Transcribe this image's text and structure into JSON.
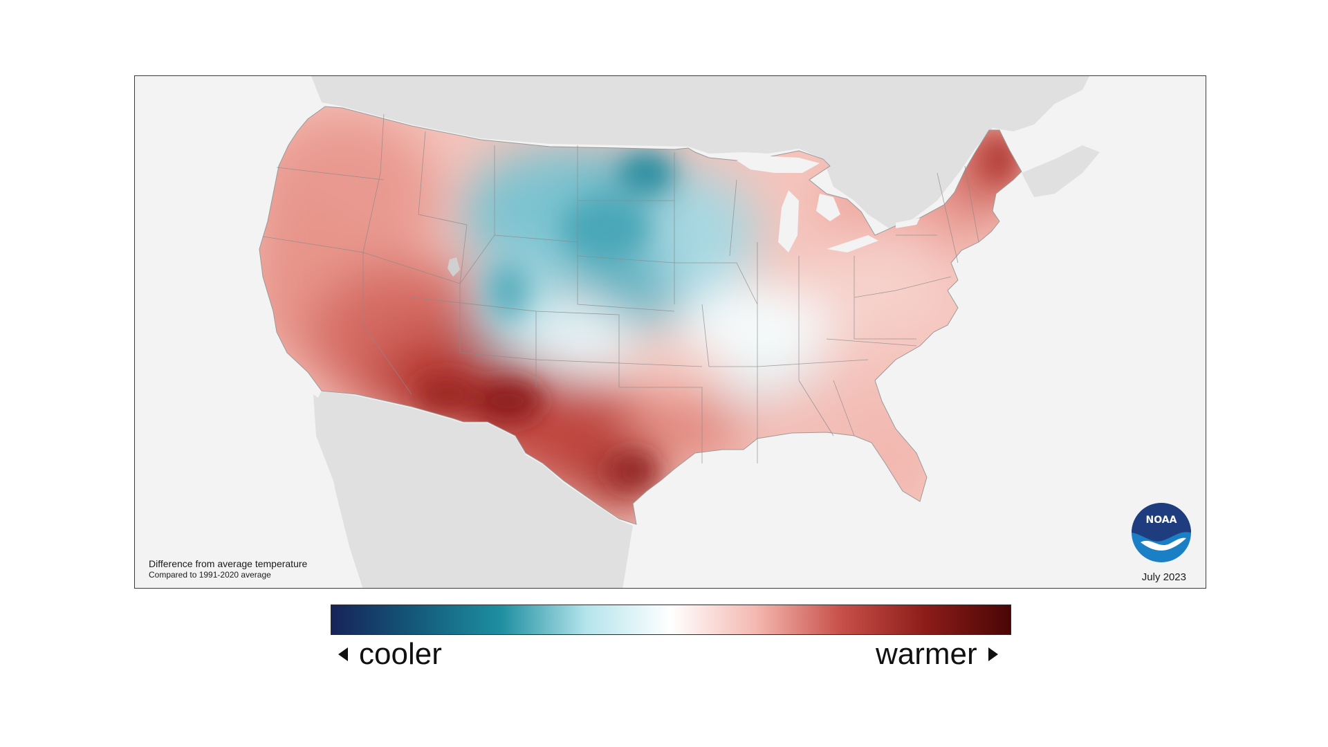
{
  "map": {
    "caption_title": "Difference from average temperature",
    "caption_subtitle": "Compared to 1991-2020 average",
    "period": "July 2023",
    "logo_text": "NOAA"
  },
  "legend": {
    "cooler_label": "cooler",
    "warmer_label": "warmer",
    "colors": [
      "#16235a",
      "#145a7a",
      "#1e8fa0",
      "#b4e4ec",
      "#ffffff",
      "#f4b8b0",
      "#c8504a",
      "#8c1c18",
      "#4a0606"
    ]
  },
  "colors": {
    "land_background": "#e0e0e0",
    "ocean_background": "#f3f3f3",
    "state_border": "#8a8a8a",
    "noaa_dark": "#1f3c7e",
    "noaa_light": "#1a7fc4"
  },
  "icons": {
    "logo": "noaa-logo",
    "left_arrow": "left-triangle-icon",
    "right_arrow": "right-triangle-icon"
  }
}
